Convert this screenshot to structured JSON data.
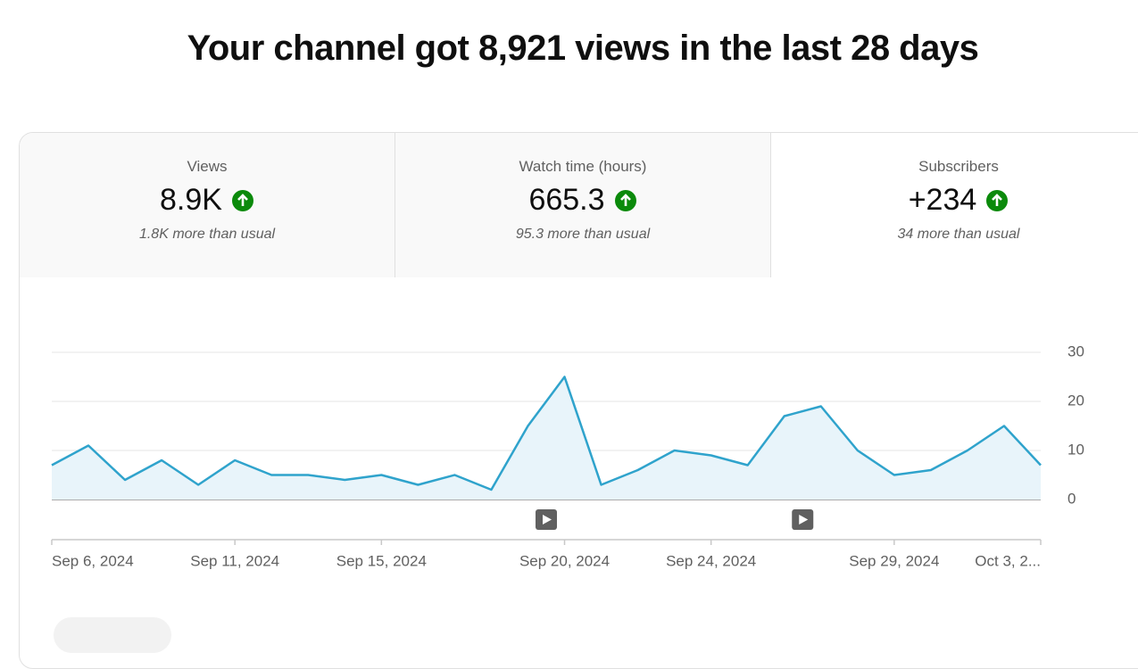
{
  "header": {
    "title": "Your channel got 8,921 views in the last 28 days"
  },
  "metrics": [
    {
      "label": "Views",
      "value": "8.9K",
      "note": "1.8K more than usual"
    },
    {
      "label": "Watch time (hours)",
      "value": "665.3",
      "note": "95.3 more than usual"
    },
    {
      "label": "Subscribers",
      "value": "+234",
      "note": "34 more than usual"
    }
  ],
  "chart_data": {
    "type": "area",
    "color": "#2fa3cc",
    "fill": "#e8f4fa",
    "x": [
      "2024-09-06",
      "2024-09-07",
      "2024-09-08",
      "2024-09-09",
      "2024-09-10",
      "2024-09-11",
      "2024-09-12",
      "2024-09-13",
      "2024-09-14",
      "2024-09-15",
      "2024-09-16",
      "2024-09-17",
      "2024-09-18",
      "2024-09-19",
      "2024-09-20",
      "2024-09-21",
      "2024-09-22",
      "2024-09-23",
      "2024-09-24",
      "2024-09-25",
      "2024-09-26",
      "2024-09-27",
      "2024-09-28",
      "2024-09-29",
      "2024-09-30",
      "2024-10-01",
      "2024-10-02",
      "2024-10-03"
    ],
    "values": [
      7,
      11,
      4,
      8,
      3,
      8,
      5,
      5,
      4,
      5,
      3,
      5,
      2,
      15,
      25,
      3,
      6,
      10,
      9,
      7,
      17,
      19,
      10,
      5,
      6,
      10,
      15,
      7
    ],
    "ylim": [
      0,
      30
    ],
    "yticks": [
      0,
      10,
      20,
      30
    ],
    "grid": true,
    "xticks": [
      {
        "value": "2024-09-06",
        "label": "Sep 6, 2024"
      },
      {
        "value": "2024-09-11",
        "label": "Sep 11, 2024"
      },
      {
        "value": "2024-09-15",
        "label": "Sep 15, 2024"
      },
      {
        "value": "2024-09-20",
        "label": "Sep 20, 2024"
      },
      {
        "value": "2024-09-24",
        "label": "Sep 24, 2024"
      },
      {
        "value": "2024-09-29",
        "label": "Sep 29, 2024"
      },
      {
        "value": "2024-10-03",
        "label": "Oct 3, 2..."
      }
    ],
    "video_markers": [
      "2024-09-19",
      "2024-09-26"
    ]
  }
}
